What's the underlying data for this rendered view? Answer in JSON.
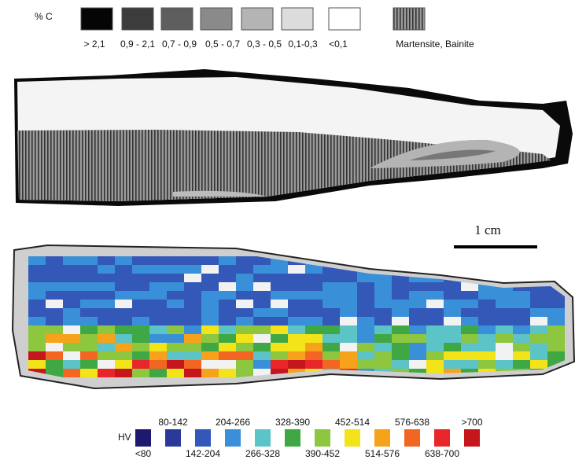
{
  "carbon_legend": {
    "title": "% C",
    "items": [
      {
        "label": "> 2,1",
        "color": "#050505"
      },
      {
        "label": "0,9 - 2,1",
        "color": "#3c3c3c"
      },
      {
        "label": "0,7 - 0,9",
        "color": "#5e5e5e"
      },
      {
        "label": "0,5 - 0,7",
        "color": "#8a8a8a"
      },
      {
        "label": "0,3 - 0,5",
        "color": "#b4b4b4"
      },
      {
        "label": "0,1-0,3",
        "color": "#dcdcdc"
      },
      {
        "label": "<0,1",
        "color": "#ffffff"
      },
      {
        "label": "Martensite, Bainite",
        "color": "#6a6a6a"
      }
    ]
  },
  "scale_bar": {
    "label": "1 cm"
  },
  "hardness_legend": {
    "title": "HV",
    "items": [
      {
        "label": "<80",
        "color": "#1c1a6e"
      },
      {
        "label": "80-142",
        "color": "#2b3a9a"
      },
      {
        "label": "142-204",
        "color": "#3358b8"
      },
      {
        "label": "204-266",
        "color": "#3a90d8"
      },
      {
        "label": "266-328",
        "color": "#5cc3c6"
      },
      {
        "label": "328-390",
        "color": "#3fa845"
      },
      {
        "label": "390-452",
        "color": "#8dc63f"
      },
      {
        "label": "452-514",
        "color": "#f3e41a"
      },
      {
        "label": "514-576",
        "color": "#f7a21b"
      },
      {
        "label": "576-638",
        "color": "#f26522"
      },
      {
        "label": "638-700",
        "color": "#e8262a"
      },
      {
        "label": ">700",
        "color": "#c4161c"
      }
    ]
  }
}
